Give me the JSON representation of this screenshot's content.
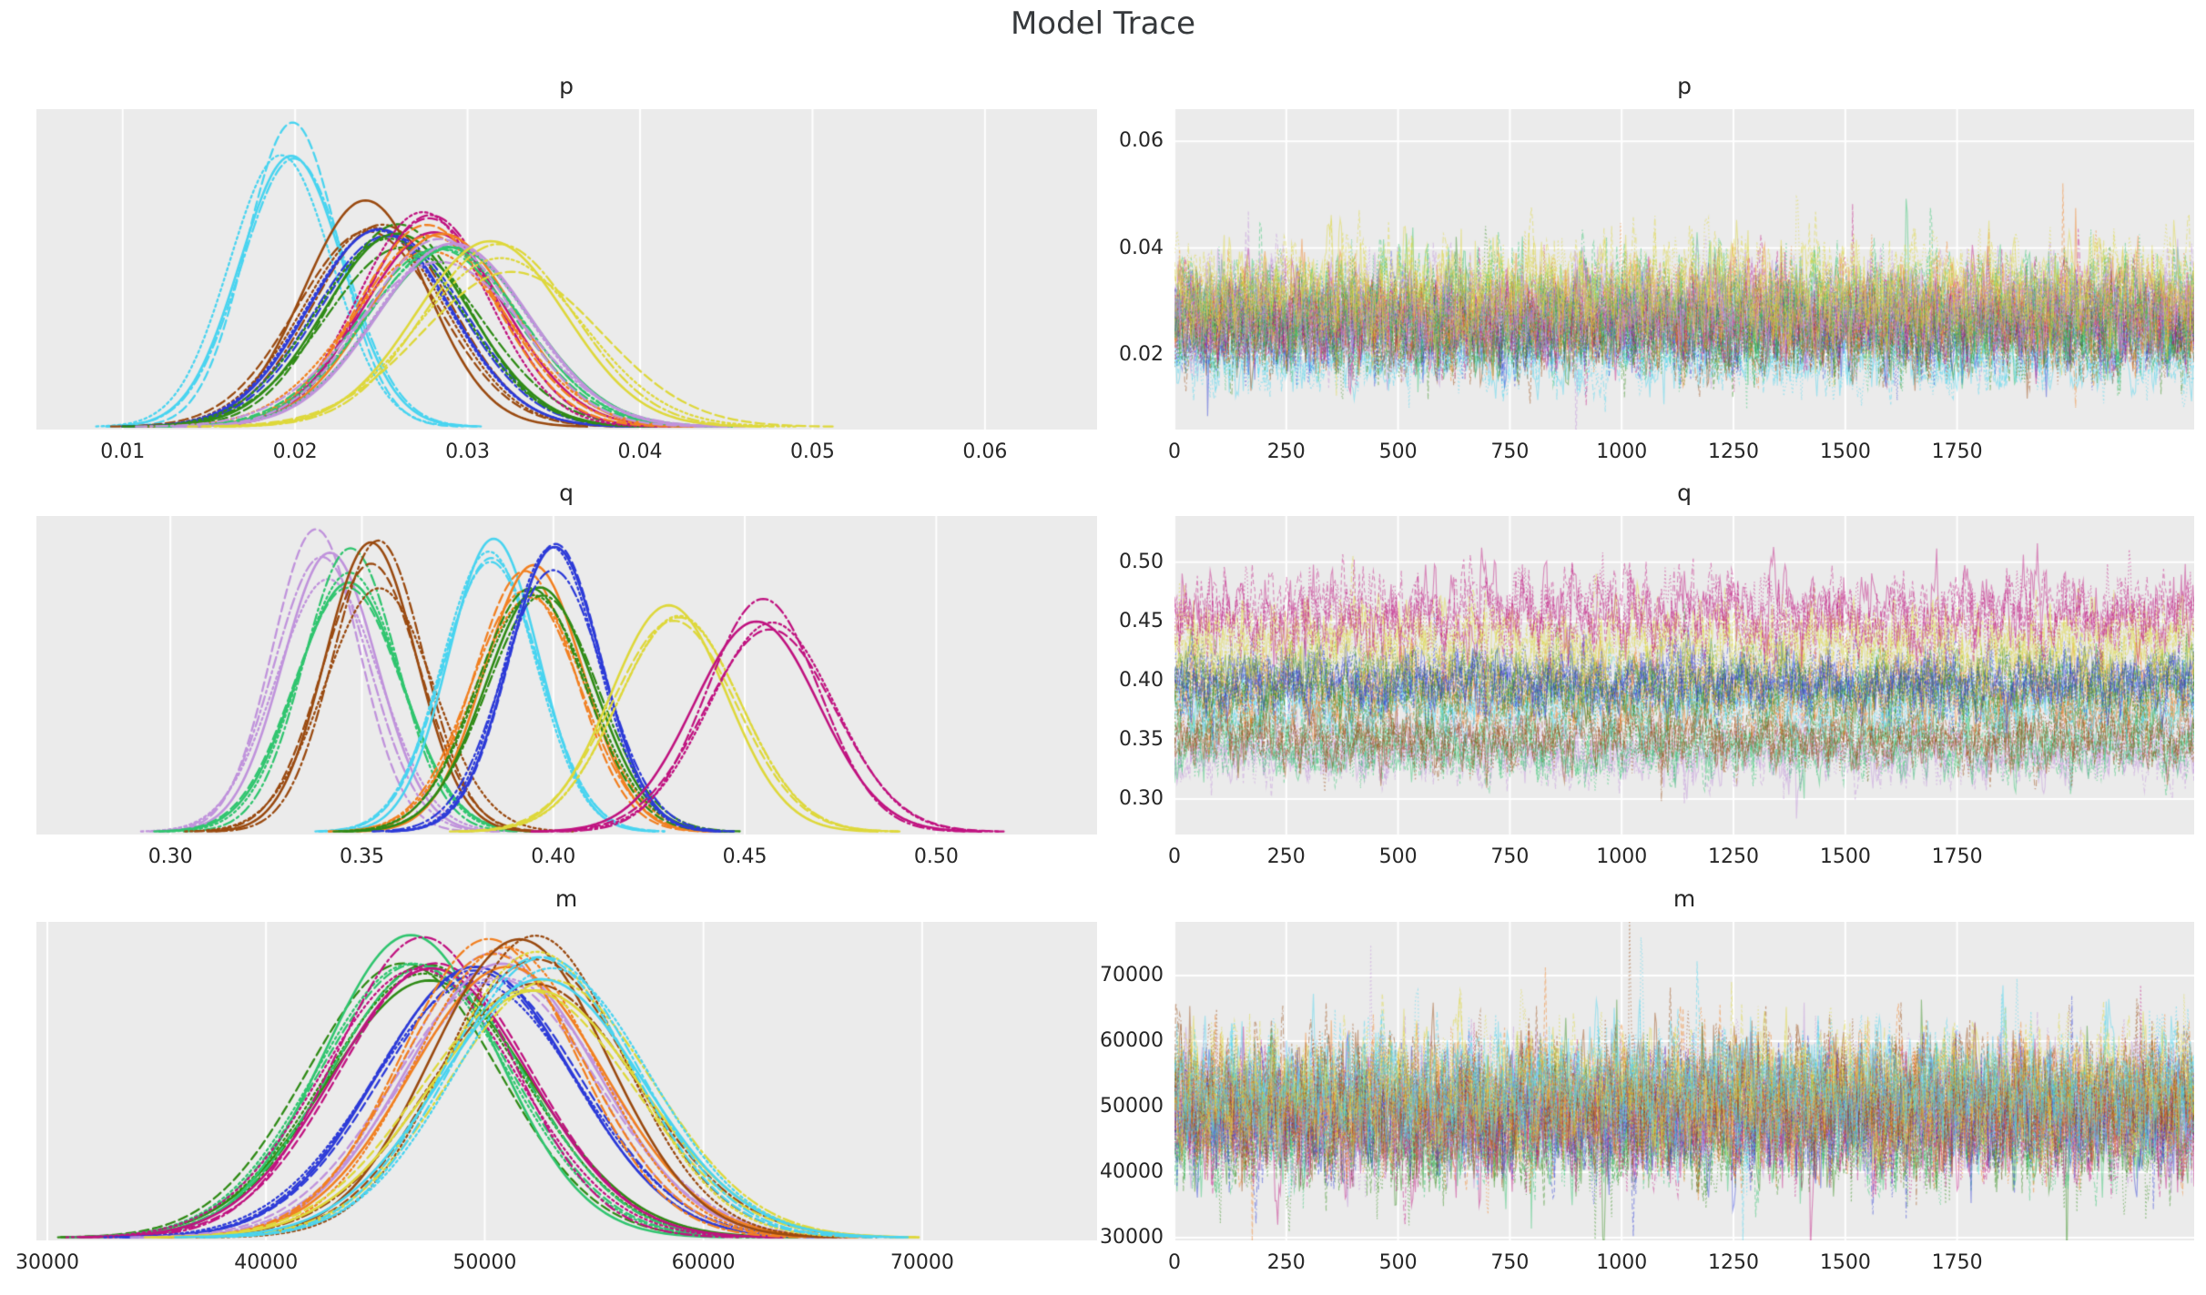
{
  "chart_data": {
    "type": "line",
    "subtype": "mcmc-trace-grid",
    "suptitle": "Model Trace",
    "layout_hint": "3 rows x 2 cols; left = KDE posterior densities (no y ticks), right = sample traces; grid on (white), panel background light gray",
    "background": "#ebebeb",
    "grid_color": "#ffffff",
    "text_color": "#262626",
    "chains": 4,
    "line_styles": [
      "solid",
      "dashed",
      "dotted",
      "dashdot"
    ],
    "draws": 2280,
    "rows": [
      {
        "param": "p",
        "kde": {
          "xlim": [
            0.005,
            0.0665
          ],
          "xticks": [
            0.01,
            0.02,
            0.03,
            0.04,
            0.05,
            0.06
          ],
          "xtick_labels": [
            "0.01",
            "0.02",
            "0.03",
            "0.04",
            "0.05",
            "0.06"
          ]
        },
        "trace": {
          "ylim": [
            0.006,
            0.066
          ],
          "yticks": [
            0.02,
            0.04,
            0.06
          ],
          "ytick_labels": [
            "0.02",
            "0.04",
            "0.06"
          ],
          "xticks": [
            0,
            250,
            500,
            750,
            1000,
            1250,
            1500,
            1750
          ],
          "xtick_labels": [
            "0",
            "250",
            "500",
            "750",
            "1000",
            "1250",
            "1500",
            "1750"
          ]
        },
        "groups": [
          {
            "name": "cyan",
            "color": "#49d4f0",
            "mean": 0.0195,
            "sd": 0.0028
          },
          {
            "name": "brown",
            "color": "#9a4a10",
            "mean": 0.0247,
            "sd": 0.0038
          },
          {
            "name": "blue",
            "color": "#2d3bd8",
            "mean": 0.0253,
            "sd": 0.004
          },
          {
            "name": "green",
            "color": "#2f8b16",
            "mean": 0.0258,
            "sd": 0.0042
          },
          {
            "name": "magenta",
            "color": "#c01380",
            "mean": 0.0278,
            "sd": 0.004
          },
          {
            "name": "orange",
            "color": "#f28021",
            "mean": 0.0282,
            "sd": 0.0043
          },
          {
            "name": "emerald",
            "color": "#30c56f",
            "mean": 0.0285,
            "sd": 0.0045
          },
          {
            "name": "plum",
            "color": "#c093dc",
            "mean": 0.0291,
            "sd": 0.0045
          },
          {
            "name": "yellow",
            "color": "#ded83b",
            "mean": 0.0321,
            "sd": 0.0048
          }
        ]
      },
      {
        "param": "q",
        "kde": {
          "xlim": [
            0.265,
            0.542
          ],
          "xticks": [
            0.3,
            0.35,
            0.4,
            0.45,
            0.5
          ],
          "xtick_labels": [
            "0.30",
            "0.35",
            "0.40",
            "0.45",
            "0.50"
          ]
        },
        "trace": {
          "ylim": [
            0.27,
            0.539
          ],
          "yticks": [
            0.3,
            0.35,
            0.4,
            0.45,
            0.5
          ],
          "ytick_labels": [
            "0.30",
            "0.35",
            "0.40",
            "0.45",
            "0.50"
          ],
          "xticks": [
            0,
            250,
            500,
            750,
            1000,
            1250,
            1500,
            1750
          ],
          "xtick_labels": [
            "0",
            "250",
            "500",
            "750",
            "1000",
            "1250",
            "1500",
            "1750"
          ]
        },
        "groups": [
          {
            "name": "plum",
            "color": "#c093dc",
            "mean": 0.34,
            "sd": 0.0125
          },
          {
            "name": "emerald",
            "color": "#30c56f",
            "mean": 0.345,
            "sd": 0.013
          },
          {
            "name": "brown",
            "color": "#9a4a10",
            "mean": 0.354,
            "sd": 0.013
          },
          {
            "name": "cyan",
            "color": "#49d4f0",
            "mean": 0.385,
            "sd": 0.013
          },
          {
            "name": "orange",
            "color": "#f28021",
            "mean": 0.393,
            "sd": 0.014
          },
          {
            "name": "green",
            "color": "#2f8b16",
            "mean": 0.396,
            "sd": 0.014
          },
          {
            "name": "blue",
            "color": "#2d3bd8",
            "mean": 0.4,
            "sd": 0.013
          },
          {
            "name": "yellow",
            "color": "#ded83b",
            "mean": 0.431,
            "sd": 0.015
          },
          {
            "name": "magenta",
            "color": "#c01380",
            "mean": 0.455,
            "sd": 0.016
          }
        ]
      },
      {
        "param": "m",
        "kde": {
          "xlim": [
            29500,
            78000
          ],
          "xticks": [
            30000,
            40000,
            50000,
            60000,
            70000
          ],
          "xtick_labels": [
            "30000",
            "40000",
            "50000",
            "60000",
            "70000"
          ]
        },
        "trace": {
          "ylim": [
            29600,
            78200
          ],
          "yticks": [
            30000,
            40000,
            50000,
            60000,
            70000
          ],
          "ytick_labels": [
            "30000",
            "40000",
            "50000",
            "60000",
            "70000"
          ],
          "xticks": [
            0,
            250,
            500,
            750,
            1000,
            1250,
            1500,
            1750
          ],
          "xtick_labels": [
            "0",
            "250",
            "500",
            "750",
            "1000",
            "1250",
            "1500",
            "1750"
          ]
        },
        "groups": [
          {
            "name": "green",
            "color": "#2f8b16",
            "mean": 46800,
            "sd": 4300
          },
          {
            "name": "emerald",
            "color": "#30c56f",
            "mean": 47200,
            "sd": 4200
          },
          {
            "name": "magenta",
            "color": "#c01380",
            "mean": 47600,
            "sd": 4300
          },
          {
            "name": "blue",
            "color": "#2d3bd8",
            "mean": 49500,
            "sd": 4300
          },
          {
            "name": "plum",
            "color": "#c093dc",
            "mean": 50500,
            "sd": 4500
          },
          {
            "name": "orange",
            "color": "#f28021",
            "mean": 50800,
            "sd": 4400
          },
          {
            "name": "brown",
            "color": "#9a4a10",
            "mean": 52000,
            "sd": 4400
          },
          {
            "name": "yellow",
            "color": "#ded83b",
            "mean": 52300,
            "sd": 4600
          },
          {
            "name": "cyan",
            "color": "#49d4f0",
            "mean": 52400,
            "sd": 4300
          }
        ]
      }
    ]
  }
}
